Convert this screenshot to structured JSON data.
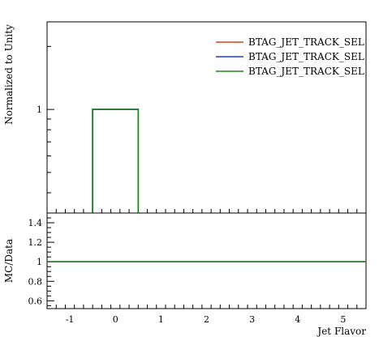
{
  "chart_data": [
    {
      "type": "line",
      "panel": "main",
      "xlabel": "",
      "ylabel": "Normalized to Unity",
      "xlim": [
        -1.5,
        5.5
      ],
      "ylim": [
        0.32,
        2.62
      ],
      "ylog": true,
      "y_ticks": [
        1
      ],
      "y_tick_labels": [
        "1"
      ],
      "legend_placement": "top-right",
      "grid": false,
      "series": [
        {
          "name": "BTAG_JET_TRACK_SEL",
          "color": "#e03c1e",
          "bins": [
            -0.5,
            0.5
          ],
          "values": [
            1
          ]
        },
        {
          "name": "BTAG_JET_TRACK_SEL",
          "color": "#1f3ed6",
          "bins": [
            -0.5,
            0.5
          ],
          "values": [
            1
          ]
        },
        {
          "name": "BTAG_JET_TRACK_SEL",
          "color": "#1a8a1a",
          "bins": [
            -0.5,
            0.5
          ],
          "values": [
            1
          ]
        }
      ]
    },
    {
      "type": "line",
      "panel": "ratio",
      "xlabel": "Jet Flavor",
      "ylabel": "MC/Data",
      "xlim": [
        -1.5,
        5.5
      ],
      "ylim": [
        0.52,
        1.5
      ],
      "x_ticks": [
        -1,
        0,
        1,
        2,
        3,
        4,
        5
      ],
      "x_tick_labels": [
        "-1",
        "0",
        "1",
        "2",
        "3",
        "4",
        "5"
      ],
      "y_ticks": [
        0.6,
        0.8,
        1,
        1.2,
        1.4
      ],
      "y_tick_labels": [
        "0.6",
        "0.8",
        "1",
        "1.2",
        "1.4"
      ],
      "grid": false,
      "series": [
        {
          "color": "#e03c1e",
          "x": [
            -1.5,
            5.5
          ],
          "y": [
            1,
            1
          ]
        },
        {
          "color": "#1f3ed6",
          "x": [
            -1.5,
            5.5
          ],
          "y": [
            1,
            1
          ]
        },
        {
          "color": "#1a8a1a",
          "x": [
            -1.5,
            5.5
          ],
          "y": [
            1,
            1
          ]
        }
      ]
    }
  ]
}
